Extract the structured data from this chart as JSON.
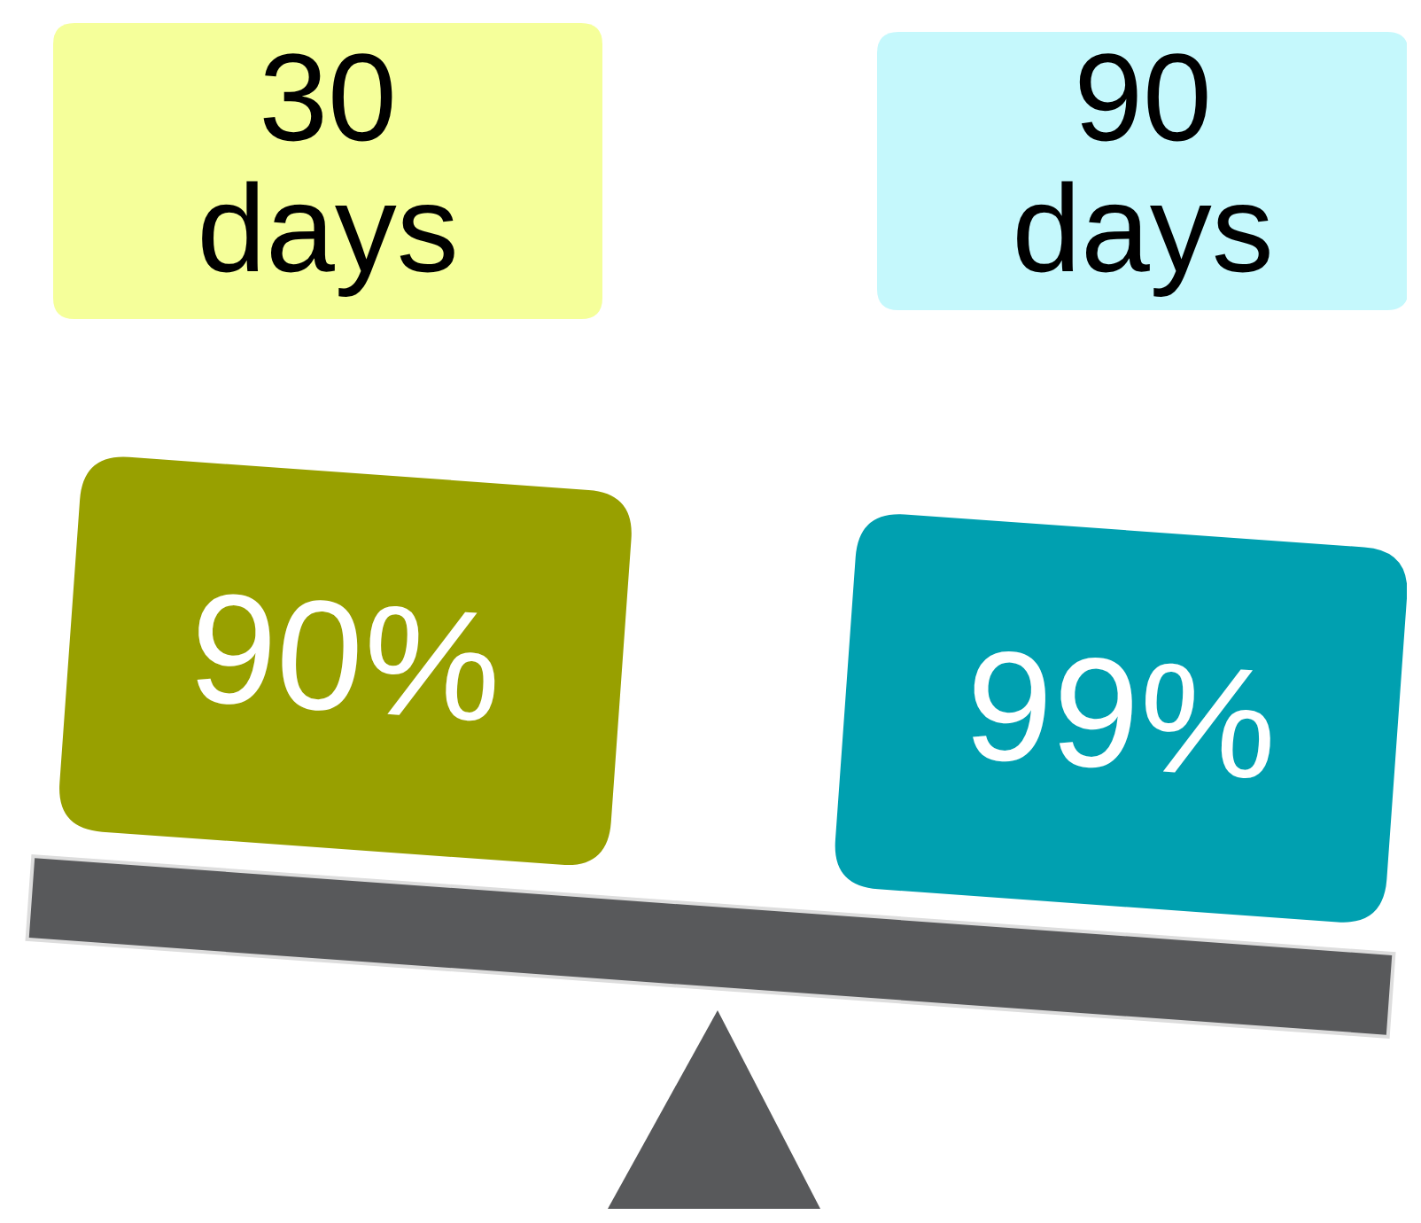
{
  "chart_data": {
    "type": "other",
    "categories": [
      "30 days",
      "90 days"
    ],
    "values": [
      90,
      99
    ],
    "value_labels": [
      "90%",
      "99%"
    ]
  }
}
